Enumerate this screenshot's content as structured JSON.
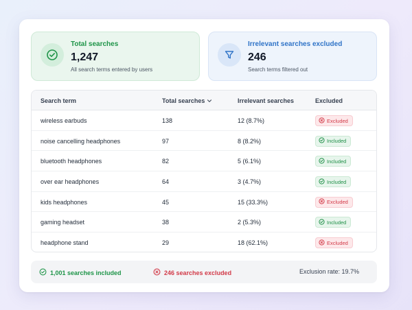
{
  "stats": {
    "total": {
      "label": "Total searches",
      "value": "1,247",
      "sub": "All search terms entered by users",
      "icon": "check-circle-icon"
    },
    "excluded": {
      "label": "Irrelevant searches excluded",
      "value": "246",
      "sub": "Search terms filtered out",
      "icon": "filter-icon"
    }
  },
  "table": {
    "headers": [
      "Search term",
      "Total searches",
      "Irrelevant searches",
      "Excluded"
    ],
    "sort_icon": "chevron-down-icon",
    "rows": [
      {
        "term": "wireless earbuds",
        "total": "138",
        "irrelevant": "12 (8.7%)",
        "status": "Excluded"
      },
      {
        "term": "noise cancelling headphones",
        "total": "97",
        "irrelevant": "8 (8.2%)",
        "status": "Included"
      },
      {
        "term": "bluetooth headphones",
        "total": "82",
        "irrelevant": "5 (6.1%)",
        "status": "Included"
      },
      {
        "term": "over ear headphones",
        "total": "64",
        "irrelevant": "3 (4.7%)",
        "status": "Included"
      },
      {
        "term": "kids headphones",
        "total": "45",
        "irrelevant": "15 (33.3%)",
        "status": "Excluded"
      },
      {
        "term": "gaming headset",
        "total": "38",
        "irrelevant": "2 (5.3%)",
        "status": "Included"
      },
      {
        "term": "headphone stand",
        "total": "29",
        "irrelevant": "18 (62.1%)",
        "status": "Excluded"
      }
    ]
  },
  "footer": {
    "included": "1,001 searches included",
    "excluded": "246 searches excluded",
    "rate": "Exclusion rate: 19.7%"
  },
  "colors": {
    "green": "#1e9448",
    "red": "#d23a48",
    "blue": "#2f73c7"
  }
}
